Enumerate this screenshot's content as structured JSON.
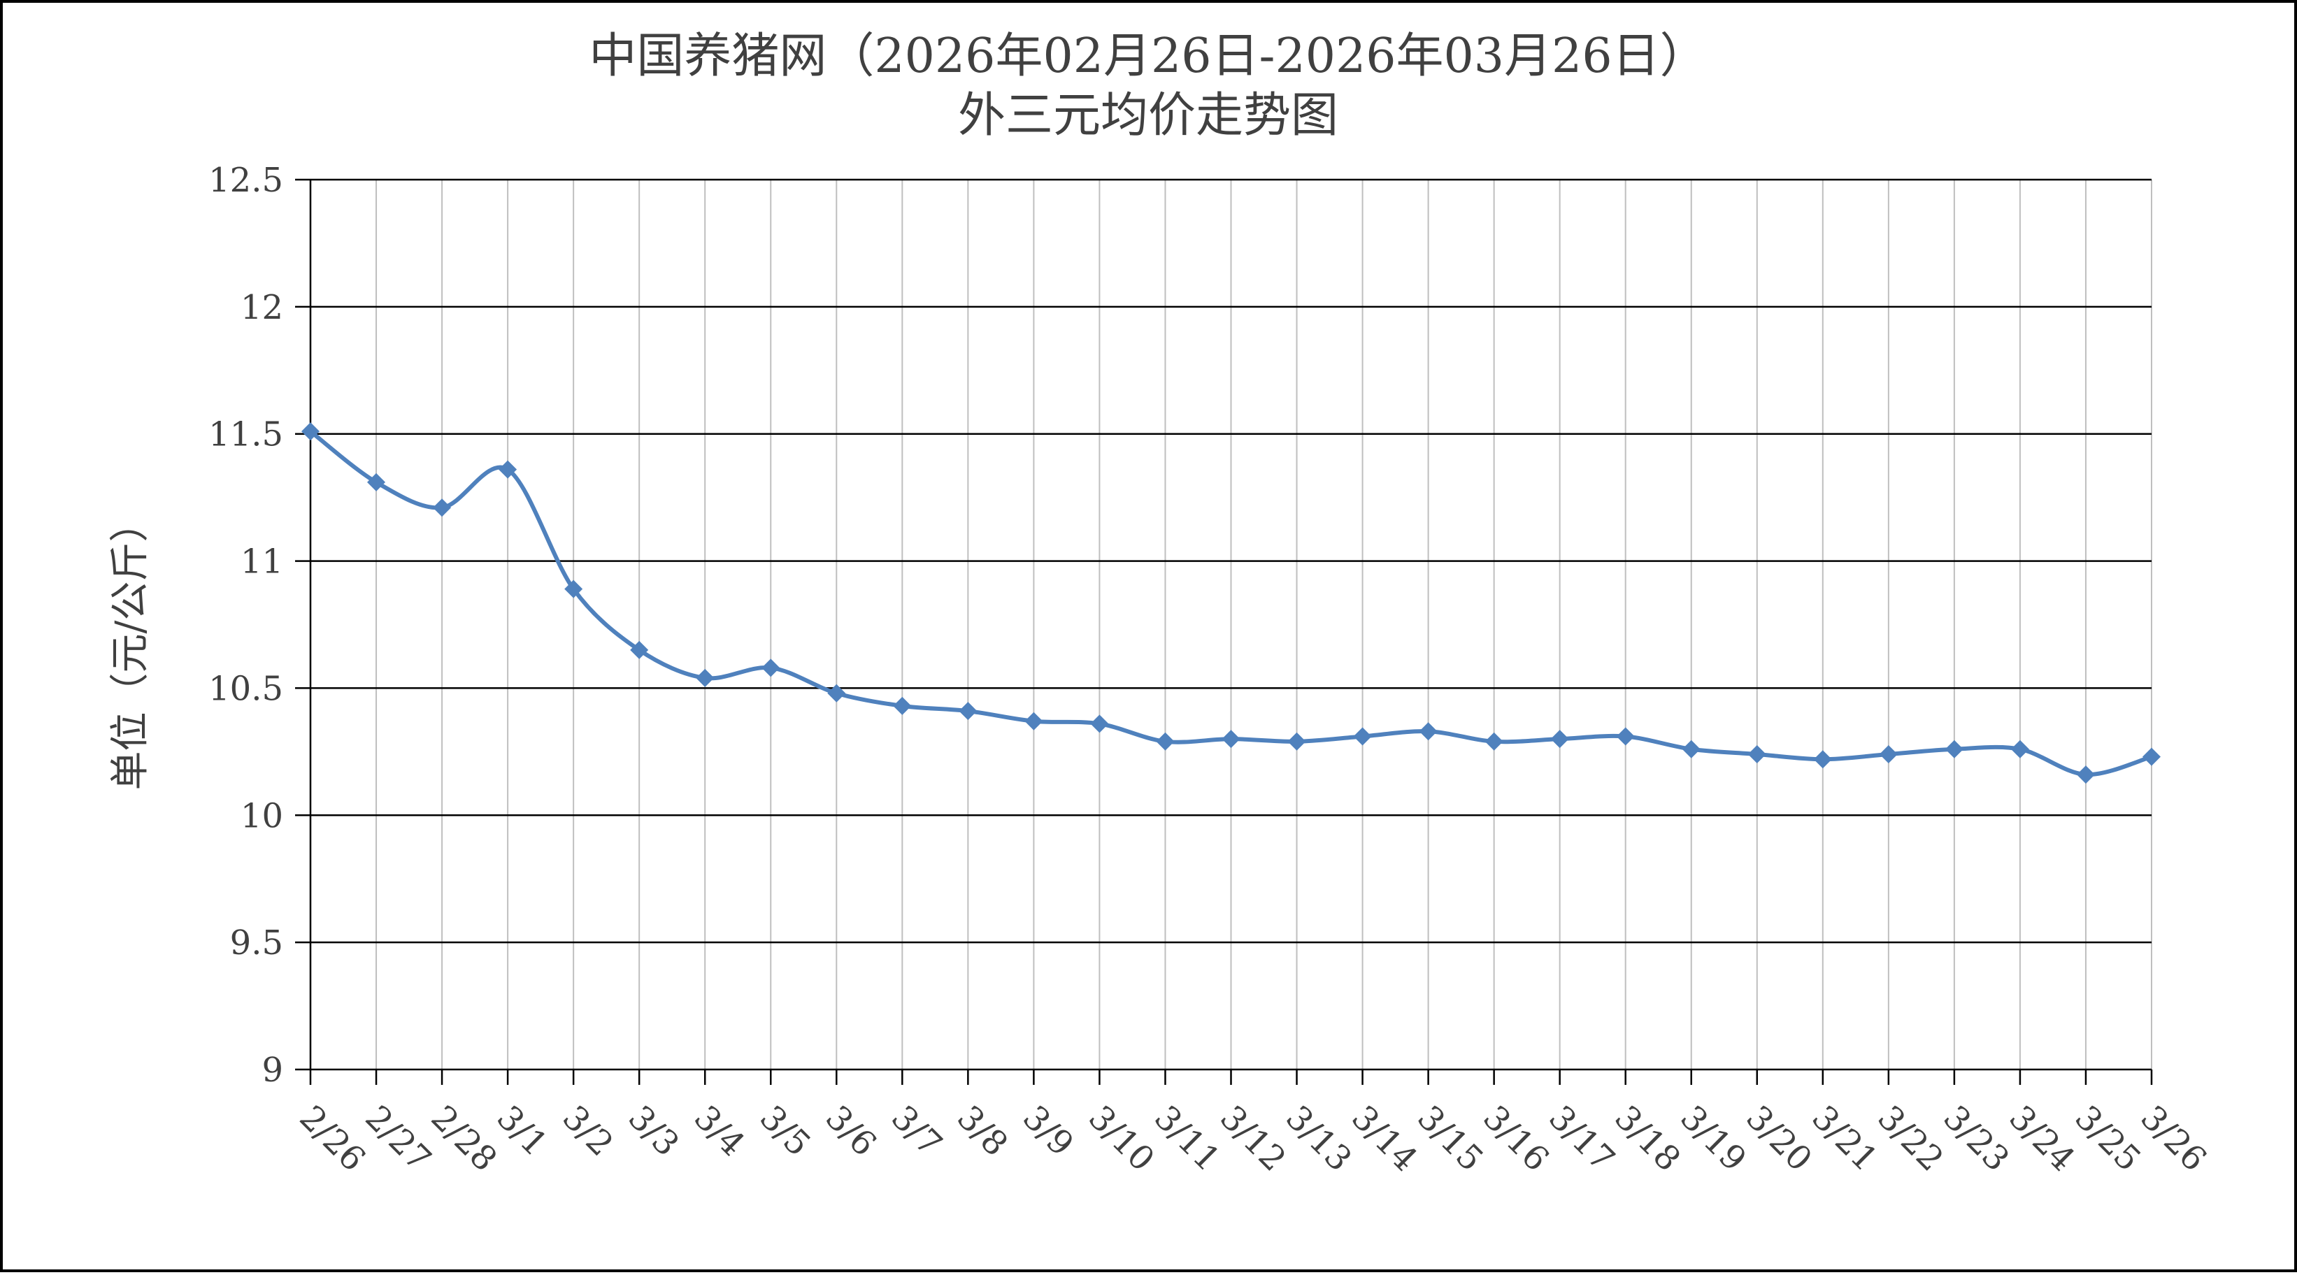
{
  "chart_data": {
    "type": "line",
    "title": "中国养猪网（2026年02月26日-2026年03月26日）",
    "subtitle": "外三元均价走势图",
    "xlabel": "",
    "ylabel": "单位（元/公斤）",
    "ylim": [
      9,
      12.5
    ],
    "yticks": [
      "12.5",
      "12",
      "11.5",
      "11",
      "10.5",
      "10",
      "9.5",
      "9"
    ],
    "ytick_values": [
      12.5,
      12,
      11.5,
      11,
      10.5,
      10,
      9.5,
      9
    ],
    "grid": "major horizontal and vertical",
    "legend": "none",
    "line_color": "#4f81bd",
    "categories": [
      "2/26",
      "2/27",
      "2/28",
      "3/1",
      "3/2",
      "3/3",
      "3/4",
      "3/5",
      "3/6",
      "3/7",
      "3/8",
      "3/9",
      "3/10",
      "3/11",
      "3/12",
      "3/13",
      "3/14",
      "3/15",
      "3/16",
      "3/17",
      "3/18",
      "3/19",
      "3/20",
      "3/21",
      "3/22",
      "3/23",
      "3/24",
      "3/25",
      "3/26"
    ],
    "series": [
      {
        "values": [
          11.51,
          11.31,
          11.21,
          11.36,
          10.89,
          10.65,
          10.54,
          10.58,
          10.48,
          10.43,
          10.41,
          10.37,
          10.36,
          10.29,
          10.3,
          10.29,
          10.31,
          10.33,
          10.29,
          10.3,
          10.31,
          10.26,
          10.24,
          10.22,
          10.24,
          10.26,
          10.26,
          10.16,
          10.23
        ]
      }
    ]
  }
}
